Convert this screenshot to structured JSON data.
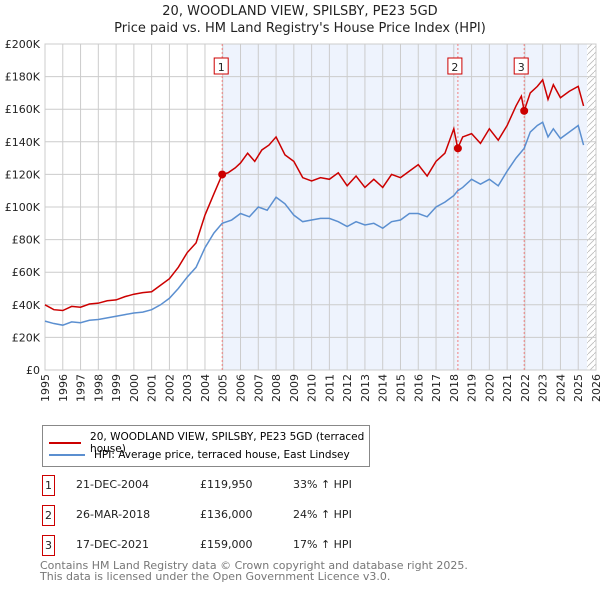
{
  "title": "20, WOODLAND VIEW, SPILSBY, PE23 5GD",
  "subtitle": "Price paid vs. HM Land Registry's House Price Index (HPI)",
  "chart_data": {
    "type": "line",
    "xlim": [
      1995,
      2026
    ],
    "ylim": [
      0,
      200000
    ],
    "xticks": [
      "1995",
      "1996",
      "1997",
      "1998",
      "1999",
      "2000",
      "2001",
      "2002",
      "2003",
      "2004",
      "2005",
      "2006",
      "2007",
      "2008",
      "2009",
      "2010",
      "2011",
      "2012",
      "2013",
      "2014",
      "2015",
      "2016",
      "2017",
      "2018",
      "2019",
      "2020",
      "2021",
      "2022",
      "2023",
      "2024",
      "2025",
      "2026"
    ],
    "yticks": [
      {
        "v": 0,
        "l": "£0"
      },
      {
        "v": 20000,
        "l": "£20K"
      },
      {
        "v": 40000,
        "l": "£40K"
      },
      {
        "v": 60000,
        "l": "£60K"
      },
      {
        "v": 80000,
        "l": "£80K"
      },
      {
        "v": 100000,
        "l": "£100K"
      },
      {
        "v": 120000,
        "l": "£120K"
      },
      {
        "v": 140000,
        "l": "£140K"
      },
      {
        "v": 160000,
        "l": "£160K"
      },
      {
        "v": 180000,
        "l": "£180K"
      },
      {
        "v": 200000,
        "l": "£200K"
      }
    ],
    "series": [
      {
        "name": "20, WOODLAND VIEW, SPILSBY, PE23 5GD (terraced house)",
        "color": "#cc0000",
        "x": [
          1995,
          1995.5,
          1996,
          1996.5,
          1997,
          1997.5,
          1998,
          1998.5,
          1999,
          1999.5,
          2000,
          2000.5,
          2001,
          2001.5,
          2002,
          2002.5,
          2003,
          2003.5,
          2004,
          2004.5,
          2004.97,
          2005.3,
          2005.7,
          2006,
          2006.4,
          2006.8,
          2007.2,
          2007.6,
          2008,
          2008.5,
          2009,
          2009.5,
          2010,
          2010.5,
          2011,
          2011.5,
          2012,
          2012.5,
          2013,
          2013.5,
          2014,
          2014.5,
          2015,
          2015.5,
          2016,
          2016.5,
          2017,
          2017.5,
          2018,
          2018.22,
          2018.5,
          2019,
          2019.5,
          2020,
          2020.5,
          2021,
          2021.5,
          2021.8,
          2021.96,
          2022.3,
          2022.7,
          2023,
          2023.3,
          2023.6,
          2024,
          2024.5,
          2025,
          2025.3
        ],
        "values": [
          40000,
          37000,
          36500,
          39000,
          38500,
          40500,
          41000,
          42500,
          43000,
          45000,
          46500,
          47500,
          48000,
          52000,
          56000,
          63000,
          72000,
          78000,
          95000,
          108000,
          119950,
          121000,
          124000,
          127000,
          133000,
          128000,
          135000,
          138000,
          143000,
          132000,
          128000,
          118000,
          116000,
          118000,
          117000,
          121000,
          113000,
          119000,
          112000,
          117000,
          112000,
          120000,
          118000,
          122000,
          126000,
          119000,
          128000,
          133000,
          148000,
          136000,
          143000,
          145000,
          139000,
          148000,
          141000,
          150000,
          162000,
          168000,
          159000,
          170000,
          174000,
          178000,
          166000,
          175000,
          167000,
          171000,
          174000,
          162000
        ]
      },
      {
        "name": "HPI: Average price, terraced house, East Lindsey",
        "color": "#5b8fd0",
        "x": [
          1995,
          1995.5,
          1996,
          1996.5,
          1997,
          1997.5,
          1998,
          1998.5,
          1999,
          1999.5,
          2000,
          2000.5,
          2001,
          2001.5,
          2002,
          2002.5,
          2003,
          2003.5,
          2004,
          2004.5,
          2004.97,
          2005.5,
          2006,
          2006.5,
          2007,
          2007.5,
          2008,
          2008.5,
          2009,
          2009.5,
          2010,
          2010.5,
          2011,
          2011.5,
          2012,
          2012.5,
          2013,
          2013.5,
          2014,
          2014.5,
          2015,
          2015.5,
          2016,
          2016.5,
          2017,
          2017.5,
          2018,
          2018.22,
          2018.5,
          2019,
          2019.5,
          2020,
          2020.5,
          2021,
          2021.5,
          2021.96,
          2022.3,
          2022.7,
          2023,
          2023.3,
          2023.6,
          2024,
          2024.5,
          2025,
          2025.3
        ],
        "values": [
          30000,
          28500,
          27500,
          29500,
          29000,
          30500,
          31000,
          32000,
          33000,
          34000,
          35000,
          35500,
          37000,
          40000,
          44000,
          50000,
          57000,
          63000,
          75000,
          84000,
          90000,
          92000,
          96000,
          94000,
          100000,
          98000,
          106000,
          102000,
          95000,
          91000,
          92000,
          93000,
          93000,
          91000,
          88000,
          91000,
          89000,
          90000,
          87000,
          91000,
          92000,
          96000,
          96000,
          94000,
          100000,
          103000,
          107000,
          110000,
          112000,
          117000,
          114000,
          117000,
          113000,
          122000,
          130000,
          136000,
          146000,
          150000,
          152000,
          143000,
          148000,
          142000,
          146000,
          150000,
          138000
        ]
      }
    ],
    "sales": [
      {
        "n": "1",
        "x": 2004.97,
        "y": 119950
      },
      {
        "n": "2",
        "x": 2018.23,
        "y": 136000
      },
      {
        "n": "3",
        "x": 2021.96,
        "y": 159000
      }
    ],
    "shade_from": 2004.97,
    "hatch_from": 2025.5
  },
  "legend": {
    "red": "20, WOODLAND VIEW, SPILSBY, PE23 5GD (terraced house)",
    "blue": "HPI: Average price, terraced house, East Lindsey",
    "red_color": "#cc0000",
    "blue_color": "#5b8fd0"
  },
  "transactions": [
    {
      "n": "1",
      "date": "21-DEC-2004",
      "price": "£119,950",
      "hpi": "33% ↑ HPI"
    },
    {
      "n": "2",
      "date": "26-MAR-2018",
      "price": "£136,000",
      "hpi": "24% ↑ HPI"
    },
    {
      "n": "3",
      "date": "17-DEC-2021",
      "price": "£159,000",
      "hpi": "17% ↑ HPI"
    }
  ],
  "footer": {
    "line1": "Contains HM Land Registry data © Crown copyright and database right 2025.",
    "line2": "This data is licensed under the Open Government Licence v3.0."
  }
}
